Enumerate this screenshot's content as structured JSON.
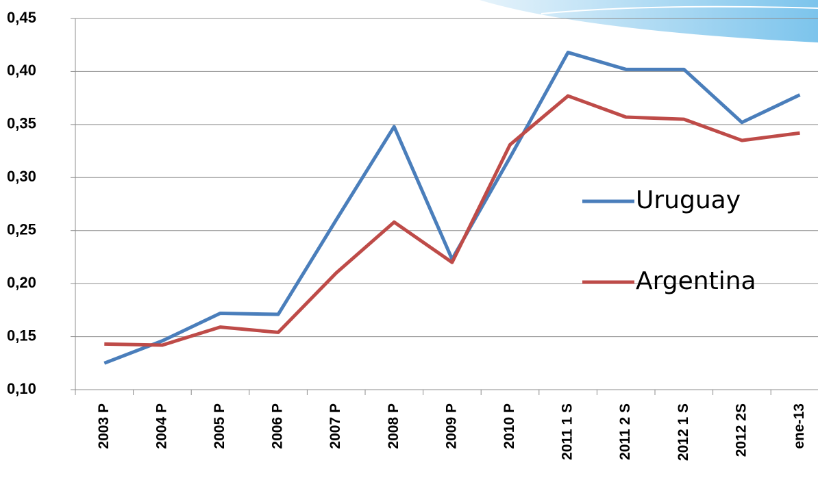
{
  "chart_data": {
    "type": "line",
    "categories": [
      "2003 P",
      "2004 P",
      "2005 P",
      "2006 P",
      "2007 P",
      "2008 P",
      "2009 P",
      "2010 P",
      "2011 1 S",
      "2011 2 S",
      "2012 1 S",
      "2012 2S",
      "ene-13"
    ],
    "series": [
      {
        "name": "Uruguay",
        "color": "#4a7ebb",
        "values": [
          0.125,
          0.146,
          0.172,
          0.171,
          0.26,
          0.348,
          0.223,
          0.319,
          0.418,
          0.402,
          0.402,
          0.352,
          0.378
        ]
      },
      {
        "name": "Argentina",
        "color": "#be4b48",
        "values": [
          0.143,
          0.142,
          0.159,
          0.154,
          0.21,
          0.258,
          0.22,
          0.331,
          0.377,
          0.357,
          0.355,
          0.335,
          0.342
        ]
      }
    ],
    "ylim": [
      0.1,
      0.45
    ],
    "yticks": [
      {
        "value": 0.1,
        "label": "0,10"
      },
      {
        "value": 0.15,
        "label": "0,15"
      },
      {
        "value": 0.2,
        "label": "0,20"
      },
      {
        "value": 0.25,
        "label": "0,25"
      },
      {
        "value": 0.3,
        "label": "0,30"
      },
      {
        "value": 0.35,
        "label": "0,35"
      },
      {
        "value": 0.4,
        "label": "0,40"
      },
      {
        "value": 0.45,
        "label": "0,45"
      }
    ],
    "grid": true,
    "legend": "right"
  }
}
